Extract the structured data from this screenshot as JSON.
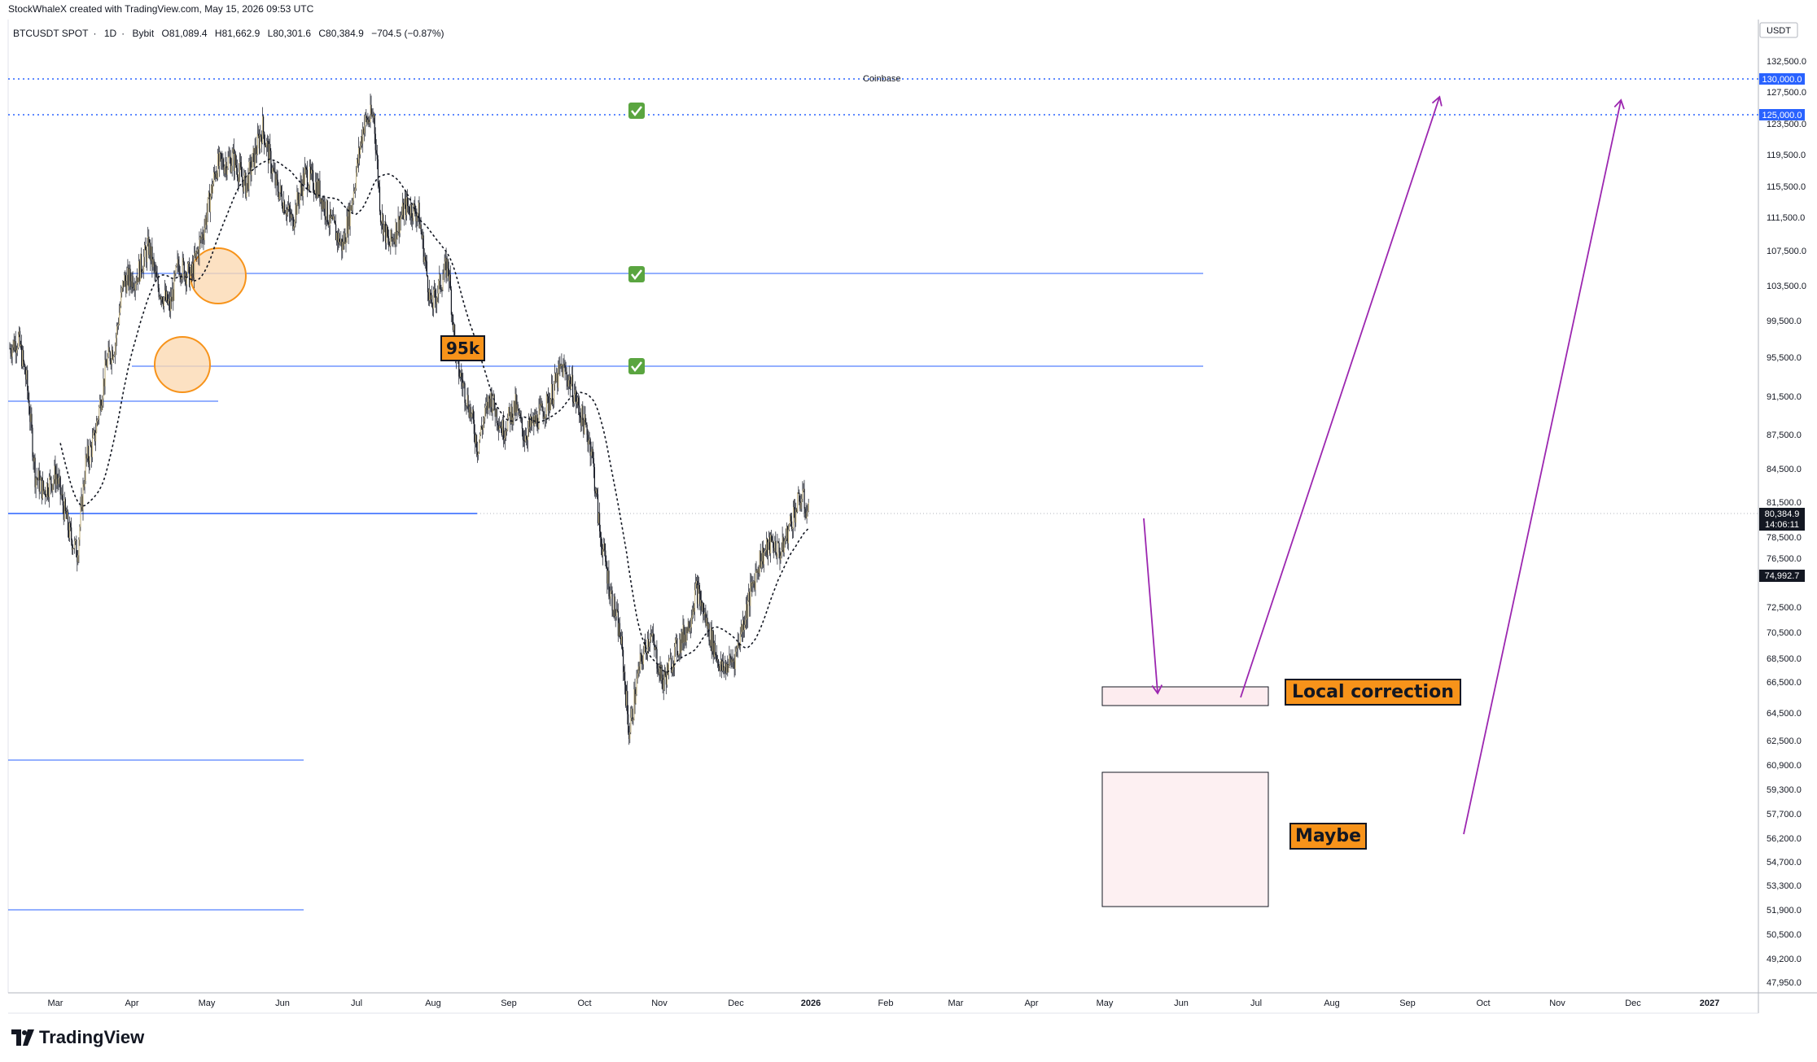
{
  "header": {
    "attribution": "StockWhaleX created with TradingView.com, May 15, 2026 09:53 UTC"
  },
  "symbol": {
    "name": "BTCUSDT SPOT",
    "interval": "1D",
    "exchange": "Bybit",
    "open": "O81,089.4",
    "high": "H81,662.9",
    "low": "L80,301.6",
    "close": "C80,384.9",
    "change": "−704.5 (−0.87%)"
  },
  "price_axis": {
    "currency": "USDT",
    "ticks": [
      "132,500.0",
      "127,500.0",
      "123,500.0",
      "119,500.0",
      "115,500.0",
      "111,500.0",
      "107,500.0",
      "103,500.0",
      "99,500.0",
      "95,500.0",
      "91,500.0",
      "87,500.0",
      "84,500.0",
      "81,500.0",
      "78,500.0",
      "76,500.0",
      "72,500.0",
      "70,500.0",
      "68,500.0",
      "66,500.0",
      "64,500.0",
      "62,500.0",
      "60,900.0",
      "59,300.0",
      "57,700.0",
      "56,200.0",
      "54,700.0",
      "53,300.0",
      "51,900.0",
      "50,500.0",
      "49,200.0",
      "47,950.0"
    ],
    "tags": {
      "level_130k": "130,000.0",
      "level_125k": "125,000.0",
      "last_price": "80,384.9",
      "countdown": "14:06:11",
      "ma_value": "74,992.7"
    }
  },
  "time_axis": {
    "ticks": [
      "Mar",
      "Apr",
      "May",
      "Jun",
      "Jul",
      "Aug",
      "Sep",
      "Oct",
      "Nov",
      "Dec",
      "2026",
      "Feb",
      "Mar",
      "Apr",
      "May",
      "Jun",
      "Jul",
      "Aug",
      "Sep",
      "Oct",
      "Nov",
      "Dec",
      "2027"
    ]
  },
  "annotations": {
    "coinbase_label": "Coinbase",
    "level_label": "95k",
    "local_correction": "Local correction",
    "maybe": "Maybe"
  },
  "colors": {
    "up_candle": "#c8b98c",
    "down_candle": "#131722",
    "level_line": "#2962ff",
    "projection_arrow": "#9c27b0",
    "label_fill": "#f7931a",
    "zone_fill": "#fdecef",
    "price_tag": "#131722",
    "level_tag": "#2962ff"
  },
  "icons": [
    "check-mark-icon",
    "tradingview-logo-icon"
  ],
  "branding": {
    "logo_text": "TradingView"
  }
}
